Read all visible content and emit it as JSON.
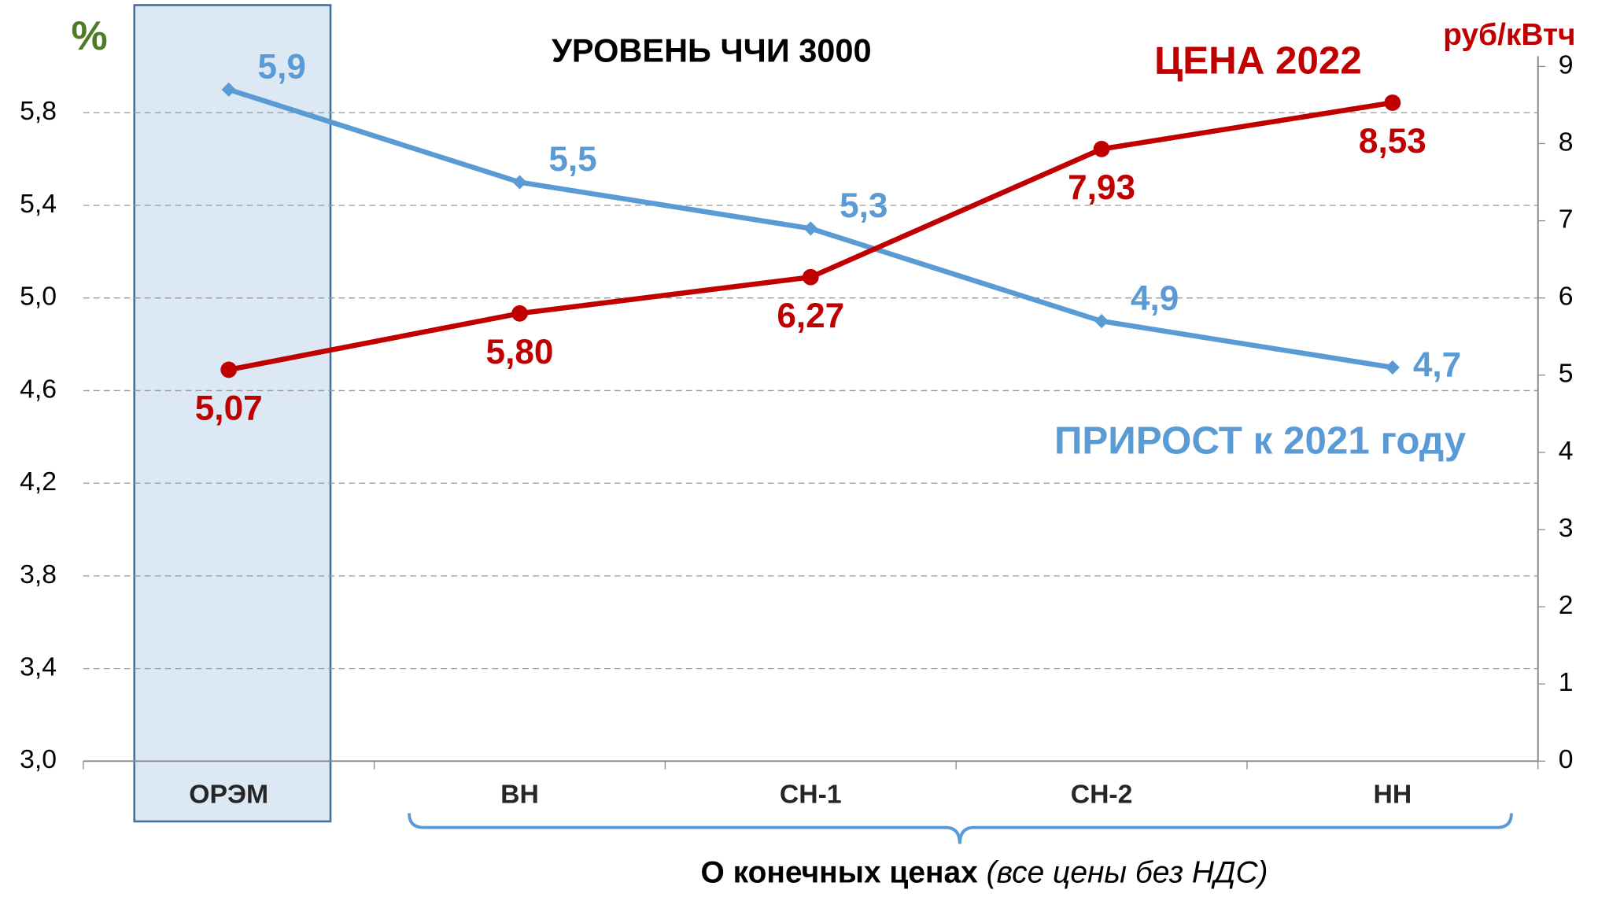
{
  "chart_data": {
    "type": "line",
    "title": "УРОВЕНЬ ЧЧИ 3000",
    "y_label": "%",
    "y2_label": "руб/кВтч",
    "annotations": [
      "ЦЕНА 2022",
      "ПРИРОСТ к 2021 году"
    ],
    "x_label": "О конечных ценах",
    "x_label_note": "(все цены без НДС)",
    "categories": [
      "ОРЭМ",
      "ВН",
      "СН-1",
      "СН-2",
      "НН"
    ],
    "series": [
      {
        "name": "ПРИРОСТ к 2021 году",
        "color": "#5b9bd5",
        "values": [
          5.9,
          5.5,
          5.3,
          4.9,
          4.7
        ],
        "value_labels": [
          "5,9",
          "5,5",
          "5,3",
          "4,9",
          "4,7"
        ]
      },
      {
        "name": "ЦЕНА 2022",
        "color": "#c00000",
        "axis": "y2",
        "values": [
          5.07,
          5.8,
          6.27,
          7.93,
          8.53
        ],
        "value_labels": [
          "5,07",
          "5,80",
          "6,27",
          "7,93",
          "8,53"
        ]
      }
    ],
    "ylim": [
      3.0,
      6.0
    ],
    "yticks": [
      {
        "value": 3.0,
        "label": "3,0"
      },
      {
        "value": 3.4,
        "label": "3,4"
      },
      {
        "value": 3.8,
        "label": "3,8"
      },
      {
        "value": 4.2,
        "label": "4,2"
      },
      {
        "value": 4.6,
        "label": "4,6"
      },
      {
        "value": 5.0,
        "label": "5,0"
      },
      {
        "value": 5.4,
        "label": "5,4"
      },
      {
        "value": 5.8,
        "label": "5,8"
      }
    ],
    "y2lim": [
      0,
      9
    ],
    "y2ticks": [
      0,
      1,
      2,
      3,
      4,
      5,
      6,
      7,
      8,
      9
    ],
    "grid": true
  }
}
